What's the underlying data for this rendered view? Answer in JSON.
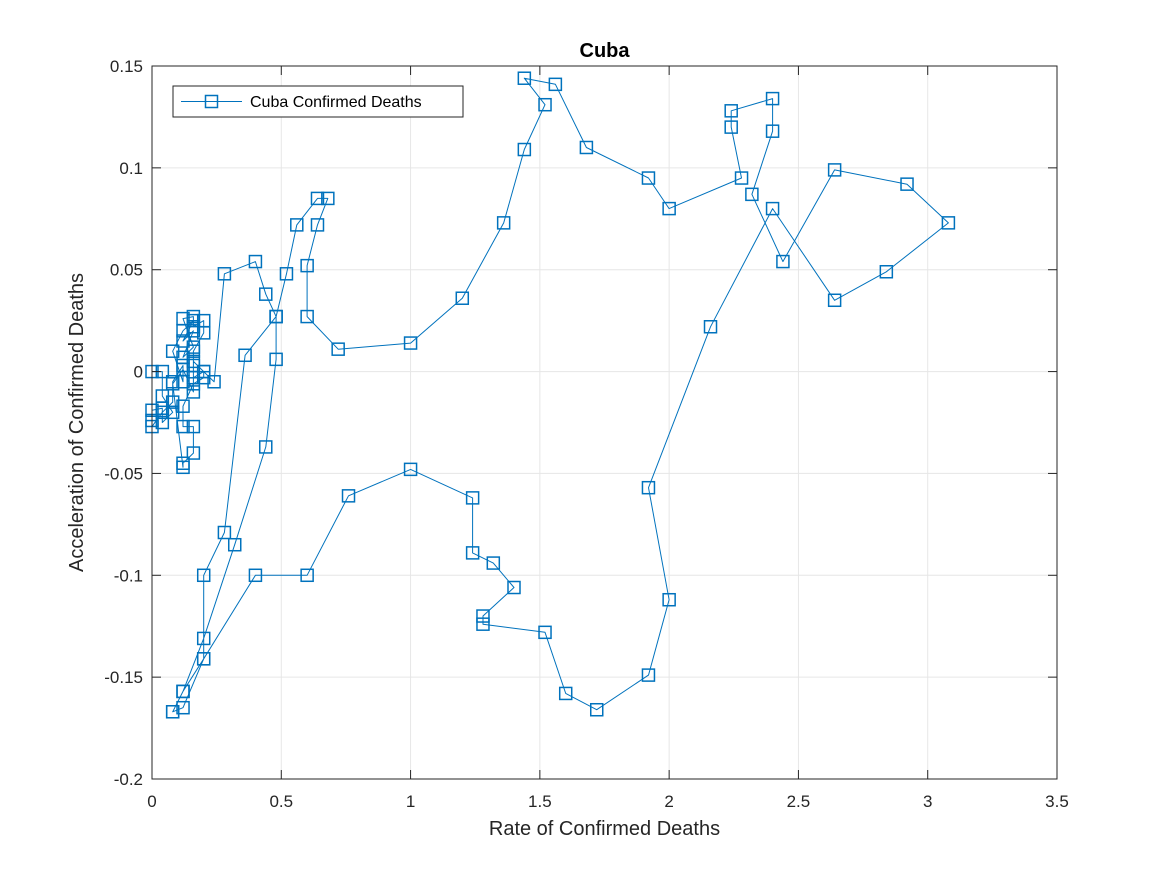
{
  "chart_data": {
    "type": "line",
    "title": "Cuba",
    "xlabel": "Rate of Confirmed Deaths",
    "ylabel": "Acceleration of Confirmed Deaths",
    "xlim": [
      0,
      3.5
    ],
    "ylim": [
      -0.2,
      0.15
    ],
    "xticks": [
      0,
      0.5,
      1,
      1.5,
      2,
      2.5,
      3,
      3.5
    ],
    "xtick_labels": [
      "0",
      "0.5",
      "1",
      "1.5",
      "2",
      "2.5",
      "3",
      "3.5"
    ],
    "yticks": [
      -0.2,
      -0.15,
      -0.1,
      -0.05,
      0,
      0.05,
      0.1,
      0.15
    ],
    "ytick_labels": [
      "-0.2",
      "-0.15",
      "-0.1",
      "-0.05",
      "0",
      "0.05",
      "0.1",
      "0.15"
    ],
    "grid": true,
    "legend_position": "top-left",
    "marker": "square",
    "series": [
      {
        "name": "Cuba Confirmed Deaths",
        "color": "#0072BD",
        "x": [
          0,
          0.04,
          0.04,
          0.08,
          0.04,
          0.04,
          0,
          0,
          0,
          0.04,
          0.08,
          0.08,
          0.12,
          0.12,
          0.08,
          0.12,
          0.16,
          0.12,
          0.16,
          0.12,
          0.16,
          0.12,
          0.16,
          0.16,
          0.2,
          0.2,
          0.16,
          0.16,
          0.16,
          0.2,
          0.2,
          0.16,
          0.12,
          0.12,
          0.16,
          0.16,
          0.12,
          0.12,
          0.08,
          0.12,
          0.16,
          0.16,
          0.2,
          0.24,
          0.28,
          0.4,
          0.44,
          0.48,
          0.48,
          0.44,
          0.32,
          0.2,
          0.12,
          0.08,
          0.12,
          0.2,
          0.2,
          0.28,
          0.36,
          0.48,
          0.52,
          0.56,
          0.64,
          0.68,
          0.64,
          0.6,
          0.6,
          0.72,
          1.0,
          1.2,
          1.36,
          1.44,
          1.52,
          1.44,
          1.56,
          1.68,
          1.92,
          2.0,
          2.28,
          2.24,
          2.24,
          2.4,
          2.4,
          2.32,
          2.44,
          2.64,
          2.92,
          3.08,
          2.84,
          2.64,
          2.4,
          2.16,
          1.92,
          2.0,
          1.92,
          1.72,
          1.6,
          1.52,
          1.28,
          1.28,
          1.4,
          1.32,
          1.24,
          1.24,
          1.0,
          0.76,
          0.6,
          0.4,
          0.2,
          0.12,
          0.08
        ],
        "y": [
          0,
          0,
          -0.012,
          -0.02,
          -0.025,
          -0.018,
          -0.019,
          -0.024,
          -0.027,
          -0.02,
          -0.015,
          -0.005,
          0.003,
          -0.005,
          0.01,
          0.02,
          0.025,
          0.015,
          0.02,
          0.007,
          0.012,
          0.026,
          0.027,
          0.022,
          0.025,
          0.019,
          0.01,
          0.003,
          -0.003,
          0,
          -0.003,
          -0.006,
          -0.017,
          -0.027,
          -0.027,
          -0.04,
          -0.045,
          -0.047,
          -0.006,
          0.001,
          -0.01,
          0.005,
          0,
          -0.005,
          0.048,
          0.054,
          0.038,
          0.027,
          0.006,
          -0.037,
          -0.085,
          -0.131,
          -0.157,
          -0.167,
          -0.165,
          -0.141,
          -0.1,
          -0.079,
          0.008,
          0.027,
          0.048,
          0.072,
          0.085,
          0.085,
          0.072,
          0.052,
          0.027,
          0.011,
          0.014,
          0.036,
          0.073,
          0.109,
          0.131,
          0.144,
          0.141,
          0.11,
          0.095,
          0.08,
          0.095,
          0.12,
          0.128,
          0.134,
          0.118,
          0.087,
          0.054,
          0.099,
          0.092,
          0.073,
          0.049,
          0.035,
          0.08,
          0.022,
          -0.057,
          -0.112,
          -0.149,
          -0.166,
          -0.158,
          -0.128,
          -0.124,
          -0.12,
          -0.106,
          -0.094,
          -0.089,
          -0.062,
          -0.048,
          -0.061,
          -0.1,
          -0.1,
          -0.141,
          -0.157,
          -0.167
        ]
      }
    ]
  }
}
